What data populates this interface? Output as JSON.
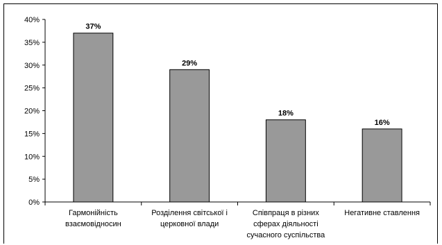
{
  "chart_data": {
    "type": "bar",
    "categories": [
      [
        "Гармонійність",
        "взаємовідносин"
      ],
      [
        "Розділення світської і",
        "церковної влади"
      ],
      [
        "Співпраця в різних",
        "сферах діяльності",
        "сучасного суспільства"
      ],
      [
        "Негативне ставлення"
      ]
    ],
    "values": [
      37,
      29,
      18,
      16
    ],
    "data_labels": [
      "37%",
      "29%",
      "18%",
      "16%"
    ],
    "ylim": [
      0,
      40
    ],
    "y_ticks": [
      0,
      5,
      10,
      15,
      20,
      25,
      30,
      35,
      40
    ],
    "y_tick_labels": [
      "0%",
      "5%",
      "10%",
      "15%",
      "20%",
      "25%",
      "30%",
      "35%",
      "40%"
    ],
    "title": "",
    "xlabel": "",
    "ylabel": "",
    "grid": false,
    "legend": "none",
    "bar_color": "#999999",
    "bar_edge_color": "#000000"
  }
}
